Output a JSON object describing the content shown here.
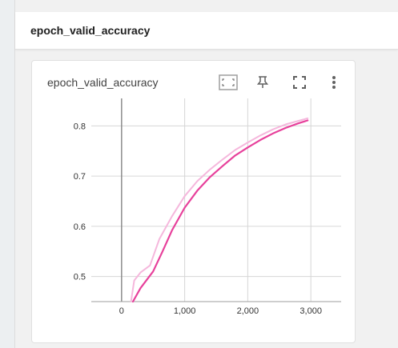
{
  "section": {
    "title": "epoch_valid_accuracy"
  },
  "card": {
    "title": "epoch_valid_accuracy",
    "toolbar": [
      {
        "name": "fit-domain-icon"
      },
      {
        "name": "pin-icon"
      },
      {
        "name": "fullscreen-icon"
      },
      {
        "name": "more-vert-icon"
      }
    ]
  },
  "colors": {
    "smoothed": "#e7409b",
    "raw": "#f5b7dc",
    "grid": "#d6d6d6",
    "zero_axis": "#8c8c8c"
  },
  "chart_data": {
    "type": "line",
    "title": "",
    "xlabel": "",
    "ylabel": "",
    "xlim": [
      -480,
      3480
    ],
    "ylim": [
      0.45,
      0.842
    ],
    "x_ticks": [
      0,
      1000,
      2000,
      3000
    ],
    "x_tick_labels": [
      "0",
      "1,000",
      "2,000",
      "3,000"
    ],
    "y_ticks": [
      0.5,
      0.6,
      0.7,
      0.8
    ],
    "y_tick_labels": [
      "0.5",
      "0.6",
      "0.7",
      "0.8"
    ],
    "grid": true,
    "series": [
      {
        "role": "raw",
        "x": [
          150,
          200,
          300,
          450,
          600,
          800,
          1000,
          1200,
          1400,
          1600,
          1800,
          2000,
          2200,
          2400,
          2600,
          2800,
          2950
        ],
        "y": [
          0.45,
          0.492,
          0.508,
          0.522,
          0.575,
          0.62,
          0.66,
          0.69,
          0.713,
          0.733,
          0.752,
          0.767,
          0.781,
          0.793,
          0.803,
          0.81,
          0.815
        ]
      },
      {
        "role": "smoothed",
        "x": [
          180,
          300,
          500,
          650,
          800,
          1000,
          1200,
          1400,
          1600,
          1800,
          2000,
          2200,
          2400,
          2600,
          2800,
          2950
        ],
        "y": [
          0.45,
          0.477,
          0.51,
          0.55,
          0.592,
          0.637,
          0.671,
          0.698,
          0.72,
          0.741,
          0.757,
          0.772,
          0.785,
          0.796,
          0.805,
          0.811
        ]
      }
    ]
  }
}
